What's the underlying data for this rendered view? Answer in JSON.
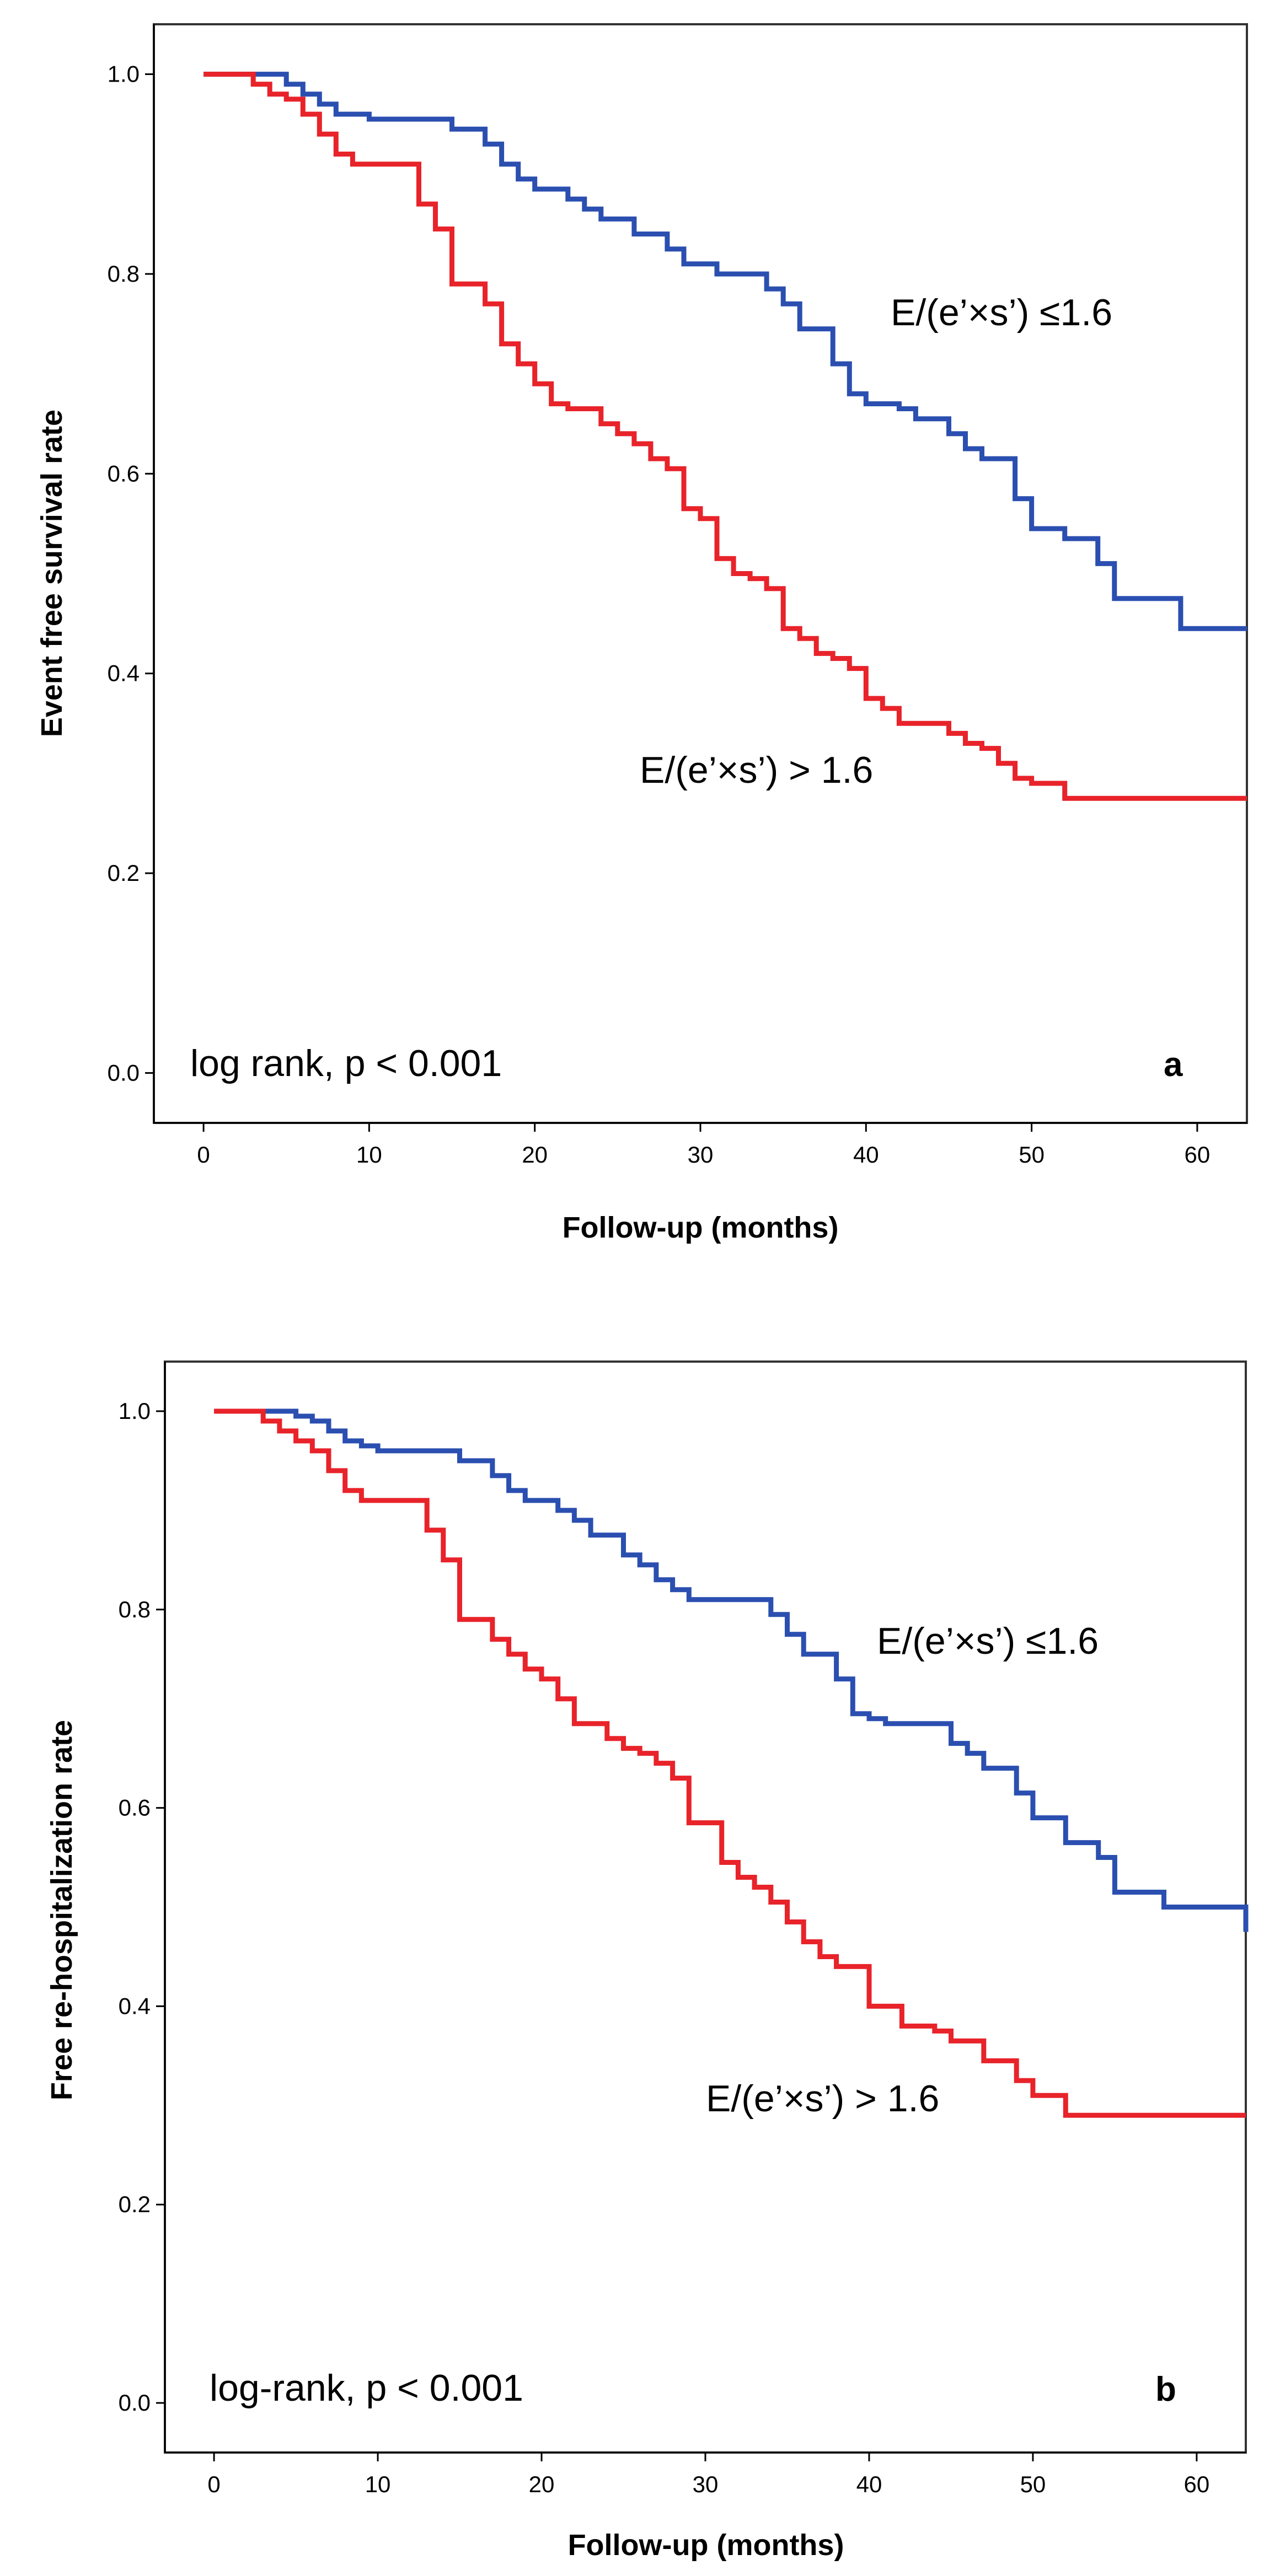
{
  "chart_data": [
    {
      "type": "line",
      "panel_label": "a",
      "xlabel": "Follow-up (months)",
      "ylabel": "Event free survival rate",
      "xlim": [
        -3,
        63
      ],
      "ylim": [
        -0.05,
        1.05
      ],
      "xticks": [
        "0",
        "10",
        "20",
        "30",
        "40",
        "50",
        "60"
      ],
      "yticks": [
        "0.0",
        "0.2",
        "0.4",
        "0.6",
        "0.8",
        "1.0"
      ],
      "annotation": "log rank, p < 0.001",
      "series": [
        {
          "name": "E/(e’×s’) ≤1.6",
          "label": "E/(e’×s’) ≤1.6",
          "color": "#2b4fb0",
          "x": [
            0,
            5,
            6,
            7,
            8,
            9,
            10,
            15,
            17,
            18,
            19,
            20,
            22,
            23,
            24,
            26,
            28,
            29,
            31,
            34,
            35,
            36,
            38,
            39,
            40,
            42,
            43,
            45,
            46,
            47,
            49,
            50,
            52,
            54,
            55,
            59,
            63
          ],
          "y": [
            1.0,
            0.99,
            0.98,
            0.97,
            0.96,
            0.96,
            0.955,
            0.945,
            0.93,
            0.91,
            0.895,
            0.885,
            0.875,
            0.865,
            0.855,
            0.84,
            0.825,
            0.81,
            0.8,
            0.785,
            0.77,
            0.745,
            0.71,
            0.68,
            0.67,
            0.665,
            0.655,
            0.64,
            0.625,
            0.615,
            0.575,
            0.545,
            0.535,
            0.51,
            0.475,
            0.445,
            0.445
          ]
        },
        {
          "name": "E/(e’×s’) > 1.6",
          "label": "E/(e’×s’) > 1.6",
          "color": "#e8232a",
          "x": [
            0,
            3,
            4,
            5,
            6,
            7,
            8,
            9,
            10,
            13,
            14,
            15,
            17,
            18,
            19,
            20,
            21,
            22,
            24,
            25,
            26,
            27,
            28,
            29,
            30,
            31,
            32,
            33,
            34,
            35,
            36,
            37,
            38,
            39,
            40,
            41,
            42,
            45,
            46,
            47,
            48,
            49,
            50,
            52,
            63
          ],
          "y": [
            1.0,
            0.99,
            0.98,
            0.975,
            0.96,
            0.94,
            0.92,
            0.91,
            0.91,
            0.87,
            0.845,
            0.79,
            0.77,
            0.73,
            0.71,
            0.69,
            0.67,
            0.665,
            0.65,
            0.64,
            0.63,
            0.615,
            0.605,
            0.565,
            0.555,
            0.515,
            0.5,
            0.495,
            0.485,
            0.445,
            0.435,
            0.42,
            0.415,
            0.405,
            0.375,
            0.365,
            0.35,
            0.34,
            0.33,
            0.325,
            0.31,
            0.295,
            0.29,
            0.275,
            0.275
          ]
        }
      ]
    },
    {
      "type": "line",
      "panel_label": "b",
      "xlabel": "Follow-up (months)",
      "ylabel": "Free re-hospitalization rate",
      "xlim": [
        -3,
        63
      ],
      "ylim": [
        -0.05,
        1.05
      ],
      "xticks": [
        "0",
        "10",
        "20",
        "30",
        "40",
        "50",
        "60"
      ],
      "yticks": [
        "0.0",
        "0.2",
        "0.4",
        "0.6",
        "0.8",
        "1.0"
      ],
      "annotation": "log-rank, p < 0.001",
      "series": [
        {
          "name": "E/(e’×s’) ≤1.6",
          "label": "E/(e’×s’) ≤1.6",
          "color": "#2b4fb0",
          "x": [
            0,
            5,
            6,
            7,
            8,
            9,
            10,
            15,
            17,
            18,
            19,
            21,
            22,
            23,
            25,
            26,
            27,
            28,
            29,
            30,
            34,
            35,
            36,
            38,
            39,
            40,
            41,
            45,
            46,
            47,
            49,
            50,
            52,
            54,
            55,
            58,
            63
          ],
          "y": [
            1.0,
            0.995,
            0.99,
            0.98,
            0.97,
            0.965,
            0.96,
            0.95,
            0.935,
            0.92,
            0.91,
            0.9,
            0.89,
            0.875,
            0.855,
            0.845,
            0.83,
            0.82,
            0.81,
            0.81,
            0.795,
            0.775,
            0.755,
            0.73,
            0.695,
            0.69,
            0.685,
            0.665,
            0.655,
            0.64,
            0.615,
            0.59,
            0.565,
            0.55,
            0.515,
            0.5,
            0.475
          ]
        },
        {
          "name": "E/(e’×s’) > 1.6",
          "label": "E/(e’×s’) > 1.6",
          "color": "#e8232a",
          "x": [
            0,
            3,
            4,
            5,
            6,
            7,
            8,
            9,
            10,
            13,
            14,
            15,
            17,
            18,
            19,
            20,
            21,
            22,
            24,
            25,
            26,
            27,
            28,
            29,
            31,
            32,
            33,
            34,
            35,
            36,
            37,
            38,
            40,
            42,
            44,
            45,
            47,
            49,
            50,
            52,
            63
          ],
          "y": [
            1.0,
            0.99,
            0.98,
            0.97,
            0.96,
            0.94,
            0.92,
            0.91,
            0.91,
            0.88,
            0.85,
            0.79,
            0.77,
            0.755,
            0.74,
            0.73,
            0.71,
            0.685,
            0.67,
            0.66,
            0.655,
            0.645,
            0.63,
            0.585,
            0.545,
            0.53,
            0.52,
            0.505,
            0.485,
            0.465,
            0.45,
            0.44,
            0.4,
            0.38,
            0.375,
            0.365,
            0.345,
            0.325,
            0.31,
            0.29,
            0.29
          ]
        }
      ]
    }
  ]
}
